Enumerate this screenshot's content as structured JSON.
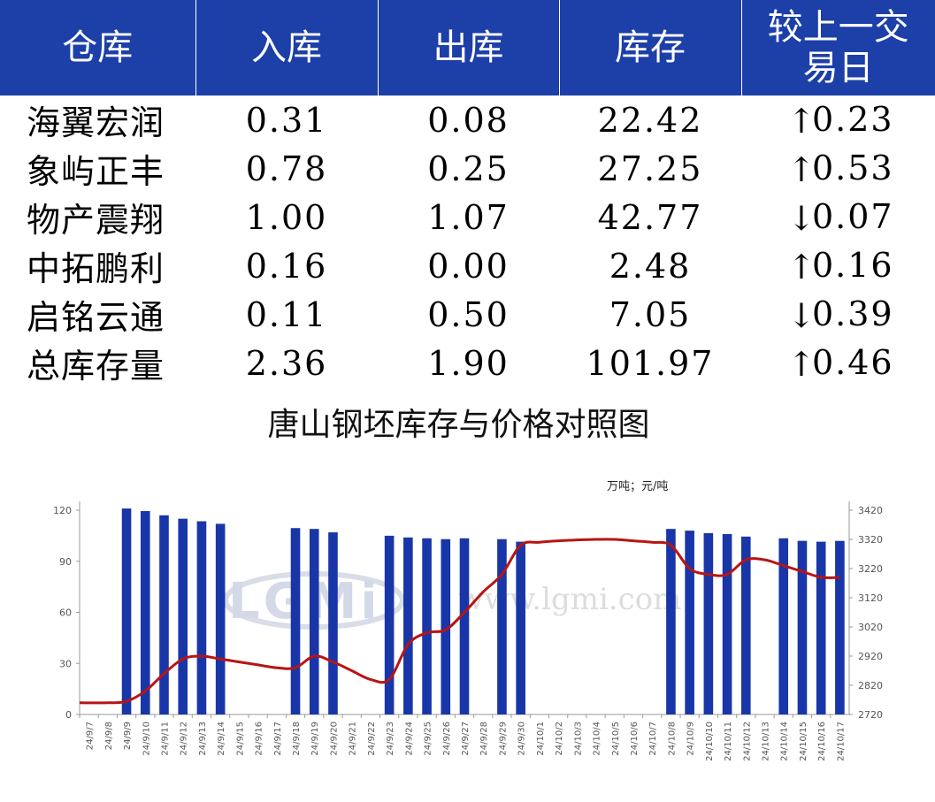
{
  "table": {
    "headers": [
      "仓库",
      "入库",
      "出库",
      "库存",
      "较上一交\n易日"
    ],
    "rows": [
      {
        "name": "海翼宏润",
        "in": "0.31",
        "out": "0.08",
        "stock": "22.42",
        "dir": "up",
        "change": "0.23"
      },
      {
        "name": "象屿正丰",
        "in": "0.78",
        "out": "0.25",
        "stock": "27.25",
        "dir": "up",
        "change": "0.53"
      },
      {
        "name": "物产震翔",
        "in": "1.00",
        "out": "1.07",
        "stock": "42.77",
        "dir": "down",
        "change": "0.07"
      },
      {
        "name": "中拓鹏利",
        "in": "0.16",
        "out": "0.00",
        "stock": "2.48",
        "dir": "up",
        "change": "0.16"
      },
      {
        "name": "启铭云通",
        "in": "0.11",
        "out": "0.50",
        "stock": "7.05",
        "dir": "down",
        "change": "0.39"
      },
      {
        "name": "总库存量",
        "in": "2.36",
        "out": "1.90",
        "stock": "101.97",
        "dir": "up",
        "change": "0.46"
      }
    ],
    "arrows": {
      "up": "↑",
      "down": "↓"
    },
    "colors": {
      "header_bg": "#1c3fa8",
      "up": "#e8101d",
      "down": "#0b9e4a"
    }
  },
  "watermark": {
    "logo": "LGMi",
    "url": "www.lgmi.com"
  },
  "chart_data": {
    "type": "bar",
    "title": "唐山钢坯库存与价格对照图",
    "unit_label": "万吨；元/吨",
    "categories": [
      "24/9/7",
      "24/9/8",
      "24/9/9",
      "24/9/10",
      "24/9/11",
      "24/9/12",
      "24/9/13",
      "24/9/14",
      "24/9/15",
      "24/9/16",
      "24/9/17",
      "24/9/18",
      "24/9/19",
      "24/9/20",
      "24/9/21",
      "24/9/22",
      "24/9/23",
      "24/9/24",
      "24/9/25",
      "24/9/26",
      "24/9/27",
      "24/9/28",
      "24/9/29",
      "24/9/30",
      "24/10/1",
      "24/10/2",
      "24/10/3",
      "24/10/4",
      "24/10/5",
      "24/10/6",
      "24/10/7",
      "24/10/8",
      "24/10/9",
      "24/10/10",
      "24/10/11",
      "24/10/12",
      "24/10/13",
      "24/10/14",
      "24/10/15",
      "24/10/16",
      "24/10/17"
    ],
    "series": [
      {
        "type": "bar",
        "axis": "left",
        "color": "#1936a8",
        "values": [
          null,
          null,
          121,
          119.5,
          117,
          115,
          113.5,
          112,
          null,
          null,
          null,
          109.5,
          109,
          107,
          null,
          null,
          105,
          104,
          103.5,
          103,
          103.5,
          null,
          103,
          101.5,
          null,
          null,
          null,
          null,
          null,
          null,
          null,
          109,
          108,
          106.5,
          106,
          104.5,
          null,
          103.5,
          102,
          101.5,
          101.97
        ]
      },
      {
        "type": "line",
        "axis": "right",
        "color": "#b81414",
        "values": [
          2760,
          2760,
          2765,
          2800,
          2860,
          2910,
          2920,
          2910,
          2900,
          2890,
          2880,
          2880,
          2920,
          2900,
          2870,
          2840,
          2840,
          2960,
          3000,
          3010,
          3070,
          3140,
          3200,
          3300,
          3310,
          3315,
          3318,
          3320,
          3320,
          3315,
          3310,
          3300,
          3220,
          3200,
          3200,
          3250,
          3250,
          3230,
          3210,
          3190,
          3190
        ]
      }
    ],
    "y_left": {
      "min": 0,
      "max": 120,
      "ticks": [
        0,
        30,
        60,
        90,
        120
      ]
    },
    "y_right": {
      "min": 2720,
      "max": 3420,
      "ticks": [
        2720,
        2820,
        2920,
        3020,
        3120,
        3220,
        3320,
        3420
      ]
    },
    "grid": false,
    "legend": "none"
  }
}
